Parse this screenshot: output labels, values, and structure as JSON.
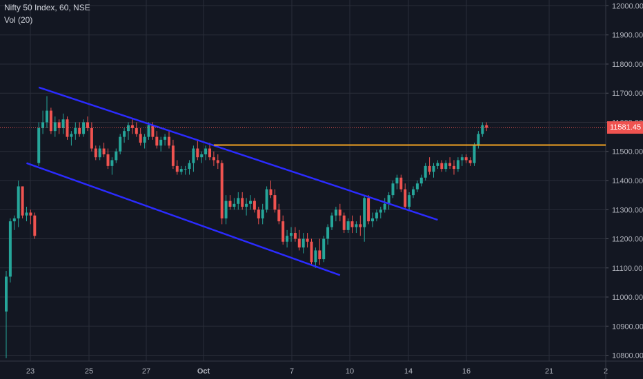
{
  "header": {
    "symbol_line": "Nifty 50 Index, 60, NSE",
    "volume_line": "Vol (20)"
  },
  "last_price_label": "11581.45",
  "colors": {
    "background": "#131722",
    "grid": "#2a2e39",
    "up": "#26a69a",
    "down": "#ef5350",
    "trendline": "#2b2bff",
    "horizontal_line": "#f5a623",
    "last_price": "#ef5350",
    "axis_text": "#b2b5be"
  },
  "chart_data": {
    "type": "candlestick",
    "y_axis": {
      "range": [
        10780,
        12020
      ],
      "ticks": [
        "12000.00",
        "11900.00",
        "11800.00",
        "11700.00",
        "11600.00",
        "11500.00",
        "11400.00",
        "11300.00",
        "11200.00",
        "11100.00",
        "11000.00",
        "10900.00",
        "10800.00"
      ],
      "side": "right"
    },
    "x_axis": {
      "ticks": [
        "23",
        "25",
        "27",
        "Oct",
        "7",
        "10",
        "14",
        "16",
        "21",
        "2"
      ]
    },
    "last_price": 11581.45,
    "candles": [
      [
        10950,
        11090,
        10790,
        11070
      ],
      [
        11070,
        11270,
        11050,
        11260
      ],
      [
        11260,
        11280,
        11230,
        11270
      ],
      [
        11270,
        11400,
        11240,
        11380
      ],
      [
        11380,
        11380,
        11270,
        11280
      ],
      [
        11280,
        11310,
        11260,
        11290
      ],
      [
        11290,
        11300,
        11250,
        11280
      ],
      [
        11280,
        11290,
        11200,
        11210
      ],
      [
        11460,
        11600,
        11450,
        11580
      ],
      [
        11580,
        11640,
        11560,
        11600
      ],
      [
        11600,
        11690,
        11580,
        11640
      ],
      [
        11640,
        11650,
        11560,
        11570
      ],
      [
        11570,
        11620,
        11550,
        11600
      ],
      [
        11600,
        11610,
        11560,
        11580
      ],
      [
        11580,
        11630,
        11560,
        11610
      ],
      [
        11610,
        11620,
        11540,
        11550
      ],
      [
        11550,
        11570,
        11520,
        11560
      ],
      [
        11560,
        11600,
        11540,
        11580
      ],
      [
        11580,
        11600,
        11550,
        11560
      ],
      [
        11560,
        11610,
        11550,
        11600
      ],
      [
        11600,
        11620,
        11570,
        11580
      ],
      [
        11580,
        11600,
        11500,
        11510
      ],
      [
        11510,
        11520,
        11470,
        11480
      ],
      [
        11480,
        11520,
        11470,
        11510
      ],
      [
        11510,
        11530,
        11480,
        11490
      ],
      [
        11490,
        11510,
        11440,
        11450
      ],
      [
        11450,
        11480,
        11420,
        11470
      ],
      [
        11470,
        11510,
        11460,
        11500
      ],
      [
        11500,
        11560,
        11490,
        11550
      ],
      [
        11550,
        11580,
        11530,
        11570
      ],
      [
        11570,
        11600,
        11540,
        11590
      ],
      [
        11590,
        11610,
        11560,
        11580
      ],
      [
        11580,
        11600,
        11550,
        11560
      ],
      [
        11560,
        11580,
        11520,
        11530
      ],
      [
        11530,
        11560,
        11510,
        11550
      ],
      [
        11550,
        11600,
        11540,
        11590
      ],
      [
        11590,
        11600,
        11540,
        11550
      ],
      [
        11550,
        11570,
        11510,
        11520
      ],
      [
        11520,
        11550,
        11500,
        11540
      ],
      [
        11540,
        11560,
        11520,
        11550
      ],
      [
        11550,
        11570,
        11510,
        11520
      ],
      [
        11520,
        11540,
        11440,
        11450
      ],
      [
        11450,
        11470,
        11420,
        11430
      ],
      [
        11430,
        11450,
        11420,
        11440
      ],
      [
        11440,
        11450,
        11420,
        11440
      ],
      [
        11440,
        11470,
        11420,
        11460
      ],
      [
        11460,
        11520,
        11430,
        11510
      ],
      [
        11510,
        11540,
        11470,
        11480
      ],
      [
        11480,
        11500,
        11460,
        11490
      ],
      [
        11490,
        11520,
        11470,
        11510
      ],
      [
        11510,
        11530,
        11470,
        11480
      ],
      [
        11480,
        11500,
        11450,
        11470
      ],
      [
        11470,
        11490,
        11440,
        11460
      ],
      [
        11460,
        11470,
        11250,
        11270
      ],
      [
        11270,
        11350,
        11250,
        11330
      ],
      [
        11330,
        11350,
        11300,
        11310
      ],
      [
        11310,
        11340,
        11300,
        11320
      ],
      [
        11320,
        11360,
        11300,
        11340
      ],
      [
        11340,
        11360,
        11300,
        11310
      ],
      [
        11310,
        11340,
        11280,
        11320
      ],
      [
        11320,
        11350,
        11300,
        11330
      ],
      [
        11330,
        11340,
        11290,
        11300
      ],
      [
        11300,
        11310,
        11250,
        11270
      ],
      [
        11270,
        11320,
        11250,
        11300
      ],
      [
        11300,
        11380,
        11290,
        11370
      ],
      [
        11370,
        11400,
        11340,
        11350
      ],
      [
        11350,
        11370,
        11290,
        11300
      ],
      [
        11300,
        11320,
        11250,
        11260
      ],
      [
        11260,
        11280,
        11180,
        11190
      ],
      [
        11190,
        11230,
        11170,
        11210
      ],
      [
        11210,
        11240,
        11190,
        11220
      ],
      [
        11220,
        11240,
        11190,
        11200
      ],
      [
        11200,
        11230,
        11160,
        11170
      ],
      [
        11170,
        11220,
        11150,
        11200
      ],
      [
        11200,
        11220,
        11170,
        11190
      ],
      [
        11190,
        11200,
        11110,
        11120
      ],
      [
        11120,
        11170,
        11100,
        11160
      ],
      [
        11160,
        11200,
        11110,
        11130
      ],
      [
        11130,
        11210,
        11120,
        11200
      ],
      [
        11200,
        11250,
        11180,
        11240
      ],
      [
        11240,
        11290,
        11230,
        11280
      ],
      [
        11280,
        11310,
        11260,
        11300
      ],
      [
        11300,
        11320,
        11260,
        11280
      ],
      [
        11280,
        11290,
        11220,
        11230
      ],
      [
        11230,
        11270,
        11220,
        11260
      ],
      [
        11260,
        11280,
        11220,
        11240
      ],
      [
        11240,
        11260,
        11220,
        11250
      ],
      [
        11250,
        11280,
        11210,
        11240
      ],
      [
        11240,
        11350,
        11190,
        11340
      ],
      [
        11340,
        11350,
        11250,
        11260
      ],
      [
        11260,
        11290,
        11240,
        11270
      ],
      [
        11270,
        11300,
        11260,
        11290
      ],
      [
        11290,
        11310,
        11270,
        11300
      ],
      [
        11300,
        11340,
        11290,
        11320
      ],
      [
        11320,
        11360,
        11300,
        11350
      ],
      [
        11350,
        11400,
        11340,
        11390
      ],
      [
        11390,
        11420,
        11370,
        11410
      ],
      [
        11410,
        11420,
        11360,
        11370
      ],
      [
        11370,
        11390,
        11300,
        11310
      ],
      [
        11310,
        11360,
        11300,
        11350
      ],
      [
        11350,
        11380,
        11340,
        11370
      ],
      [
        11370,
        11400,
        11360,
        11390
      ],
      [
        11390,
        11420,
        11380,
        11410
      ],
      [
        11410,
        11460,
        11400,
        11450
      ],
      [
        11450,
        11480,
        11420,
        11430
      ],
      [
        11430,
        11460,
        11410,
        11450
      ],
      [
        11450,
        11470,
        11440,
        11460
      ],
      [
        11460,
        11470,
        11430,
        11440
      ],
      [
        11440,
        11470,
        11430,
        11460
      ],
      [
        11460,
        11480,
        11440,
        11450
      ],
      [
        11450,
        11470,
        11420,
        11440
      ],
      [
        11440,
        11480,
        11430,
        11470
      ],
      [
        11470,
        11490,
        11450,
        11480
      ],
      [
        11480,
        11490,
        11460,
        11470
      ],
      [
        11470,
        11480,
        11450,
        11460
      ],
      [
        11460,
        11530,
        11450,
        11520
      ],
      [
        11520,
        11570,
        11510,
        11560
      ],
      [
        11560,
        11600,
        11550,
        11590
      ],
      [
        11590,
        11600,
        11570,
        11581
      ]
    ],
    "trendlines": [
      {
        "name": "upper-channel",
        "from_index": 8,
        "from_price": 11720,
        "to_index": 106,
        "to_price": 11265
      },
      {
        "name": "lower-channel",
        "from_index": 5,
        "from_price": 11460,
        "to_index": 82,
        "to_price": 11075
      }
    ],
    "horizontal_lines": [
      {
        "name": "resistance",
        "price": 11522,
        "from_index": 51,
        "to_index": 160
      }
    ],
    "grid": true
  }
}
